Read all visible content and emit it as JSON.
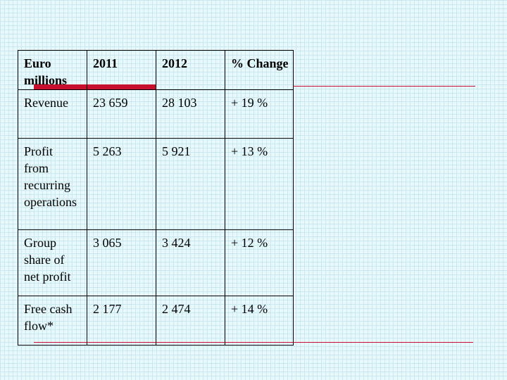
{
  "table": {
    "header": [
      "Euro millions",
      "2011",
      "2012",
      "% Change"
    ],
    "rows": [
      [
        "Revenue",
        "23 659",
        "28 103",
        "+ 19 %"
      ],
      [
        "Profit from recurring operations",
        "5 263",
        "5 921",
        "+ 13 %"
      ],
      [
        "Group share of net profit",
        "3 065",
        "3 424",
        "+ 12 %"
      ],
      [
        "Free cash flow*",
        "2 177",
        "2 474",
        "+ 14 %"
      ]
    ]
  }
}
